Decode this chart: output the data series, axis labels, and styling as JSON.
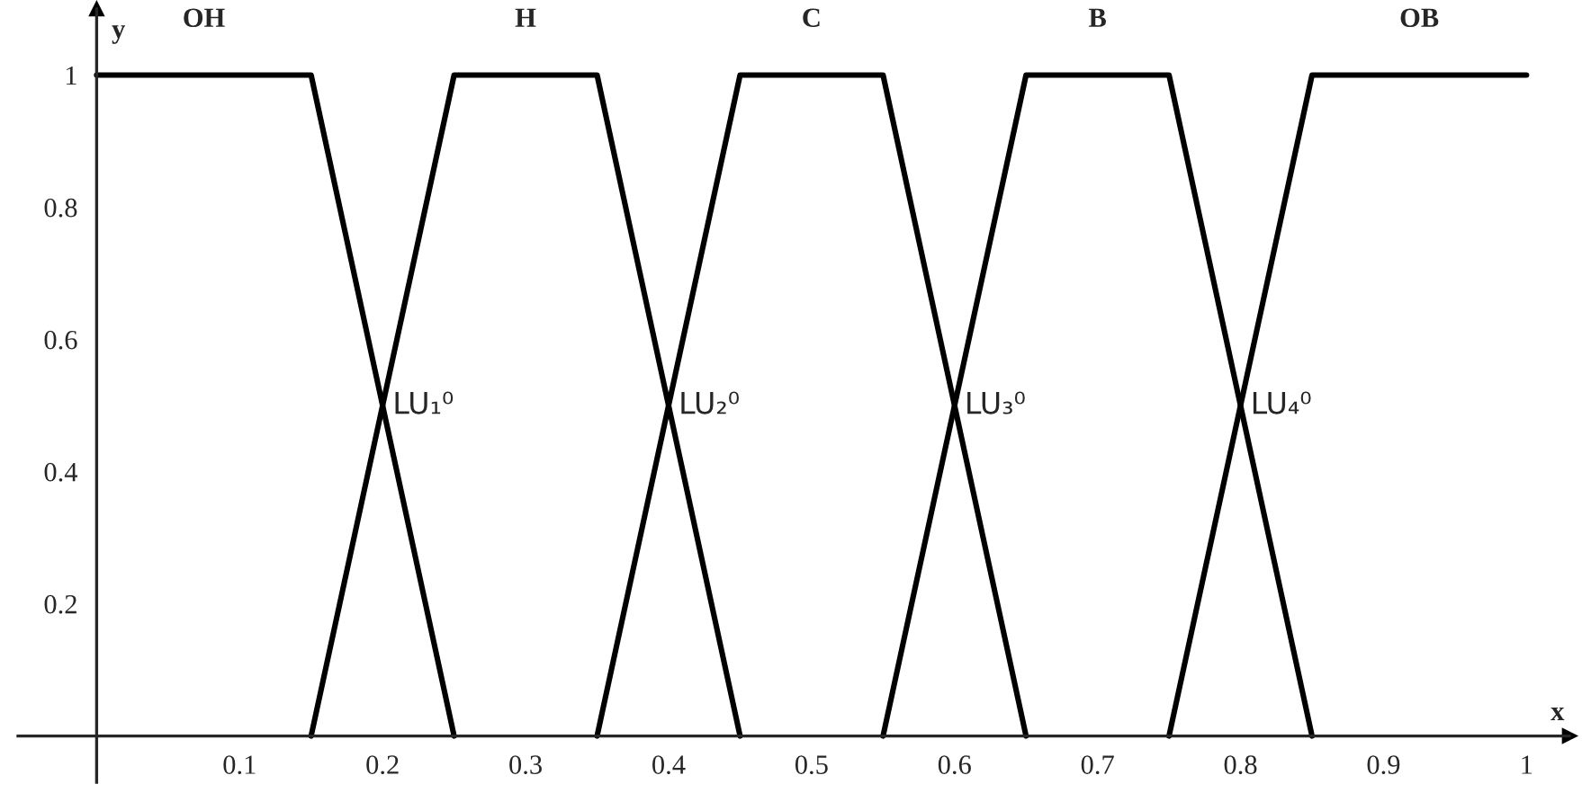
{
  "chart_data": {
    "type": "line",
    "xlabel": "x",
    "ylabel": "y",
    "xlim": [
      -0.055,
      1.03
    ],
    "ylim": [
      -0.07,
      1.1
    ],
    "xticks": [
      0.1,
      0.2,
      0.3,
      0.4,
      0.5,
      0.6,
      0.7,
      0.8,
      0.9,
      1
    ],
    "yticks": [
      0.2,
      0.4,
      0.6,
      0.8,
      1
    ],
    "grid": false,
    "legend": false,
    "marker": "none",
    "line_style": "solid",
    "series": [
      {
        "name": "OH",
        "color": "#000000",
        "x": [
          0,
          0.15,
          0.25
        ],
        "values": [
          1,
          1,
          0
        ]
      },
      {
        "name": "H",
        "color": "#000000",
        "x": [
          0.15,
          0.25,
          0.35,
          0.45
        ],
        "values": [
          0,
          1,
          1,
          0
        ]
      },
      {
        "name": "C",
        "color": "#000000",
        "x": [
          0.35,
          0.45,
          0.55,
          0.65
        ],
        "values": [
          0,
          1,
          1,
          0
        ]
      },
      {
        "name": "B",
        "color": "#000000",
        "x": [
          0.55,
          0.65,
          0.75,
          0.85
        ],
        "values": [
          0,
          1,
          1,
          0
        ]
      },
      {
        "name": "OB",
        "color": "#000000",
        "x": [
          0.75,
          0.85,
          1
        ],
        "values": [
          0,
          1,
          1
        ]
      }
    ],
    "annotations": [
      {
        "text": "LU₁⁰",
        "x": 0.2,
        "y": 0.5
      },
      {
        "text": "LU₂⁰",
        "x": 0.4,
        "y": 0.5
      },
      {
        "text": "LU₃⁰",
        "x": 0.6,
        "y": 0.5
      },
      {
        "text": "LU₄⁰",
        "x": 0.8,
        "y": 0.5
      }
    ]
  }
}
